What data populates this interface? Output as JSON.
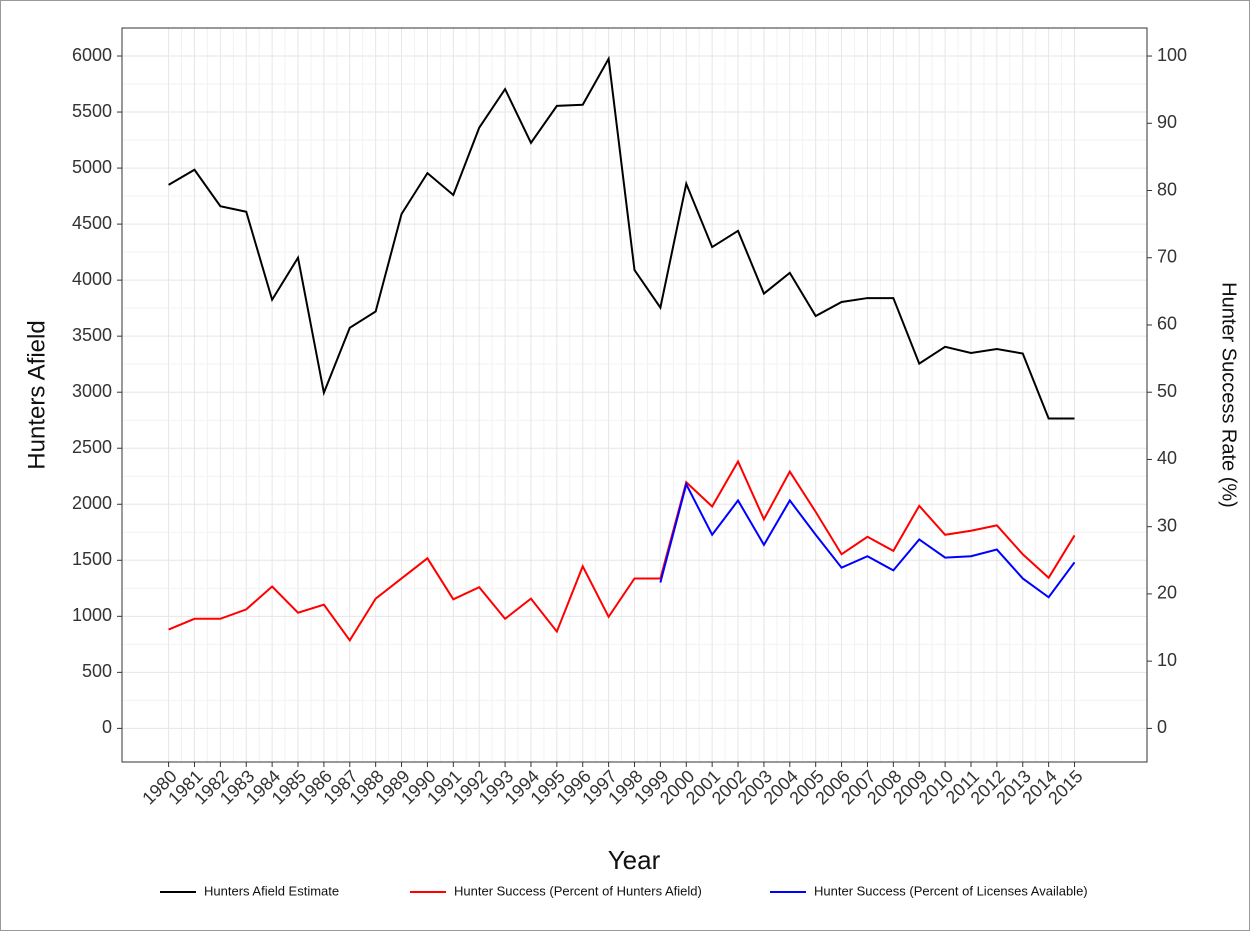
{
  "chart_data": {
    "type": "line",
    "x_label": "Year",
    "y_label": "Hunters Afield",
    "y2_label": "Hunter Success Rate (%)",
    "x": [
      1980,
      1981,
      1982,
      1983,
      1984,
      1985,
      1986,
      1987,
      1988,
      1989,
      1990,
      1991,
      1992,
      1993,
      1994,
      1995,
      1996,
      1997,
      1998,
      1999,
      2000,
      2001,
      2002,
      2003,
      2004,
      2005,
      2006,
      2007,
      2008,
      2009,
      2010,
      2011,
      2012,
      2013,
      2014,
      2015
    ],
    "xlim": [
      1978.2,
      2017.8
    ],
    "xticks": [
      1980,
      1981,
      1982,
      1983,
      1984,
      1985,
      1986,
      1987,
      1988,
      1989,
      1990,
      1991,
      1992,
      1993,
      1994,
      1995,
      1996,
      1997,
      1998,
      1999,
      2000,
      2001,
      2002,
      2003,
      2004,
      2005,
      2006,
      2007,
      2008,
      2009,
      2010,
      2011,
      2012,
      2013,
      2014,
      2015
    ],
    "ylim": [
      -300,
      6250
    ],
    "yticks": [
      0,
      500,
      1000,
      1500,
      2000,
      2500,
      3000,
      3500,
      4000,
      4500,
      5000,
      5500,
      6000
    ],
    "y2lim": [
      -5,
      104.17
    ],
    "y2ticks": [
      0,
      10,
      20,
      30,
      40,
      50,
      60,
      70,
      80,
      90,
      100
    ],
    "grid": true,
    "legend": "bottom",
    "series": [
      {
        "name": "Hunters Afield Estimate",
        "color": "#000000",
        "axis": "y",
        "values": [
          4850,
          4985,
          4660,
          4610,
          3825,
          4200,
          2995,
          3575,
          3720,
          4590,
          4955,
          4760,
          5360,
          5705,
          5225,
          5555,
          5565,
          5975,
          4090,
          3755,
          4860,
          4295,
          4440,
          3880,
          4065,
          3680,
          3805,
          3840,
          3840,
          3255,
          3405,
          3350,
          3385,
          3345,
          2765,
          2765
        ]
      },
      {
        "name": "Hunter Success (Percent of Hunters Afield)",
        "color": "#ff0000",
        "axis": "y2",
        "values": [
          14.7,
          16.3,
          16.3,
          17.7,
          21.1,
          17.2,
          18.4,
          13.1,
          19.3,
          22.3,
          25.3,
          19.2,
          21.0,
          16.3,
          19.3,
          14.4,
          24.1,
          16.6,
          22.3,
          22.3,
          36.6,
          33.0,
          39.7,
          31.1,
          38.2,
          32.2,
          25.9,
          28.5,
          26.4,
          33.1,
          28.8,
          29.4,
          30.2,
          25.9,
          22.4,
          28.7
        ]
      },
      {
        "name": "Hunter Success (Percent of Licenses Available)",
        "color": "#0000ff",
        "axis": "y2",
        "values": [
          null,
          null,
          null,
          null,
          null,
          null,
          null,
          null,
          null,
          null,
          null,
          null,
          null,
          null,
          null,
          null,
          null,
          null,
          null,
          21.7,
          36.3,
          28.8,
          33.9,
          27.3,
          33.9,
          28.8,
          23.9,
          25.6,
          23.5,
          28.1,
          25.4,
          25.6,
          26.6,
          22.3,
          19.5,
          24.7
        ]
      }
    ]
  }
}
